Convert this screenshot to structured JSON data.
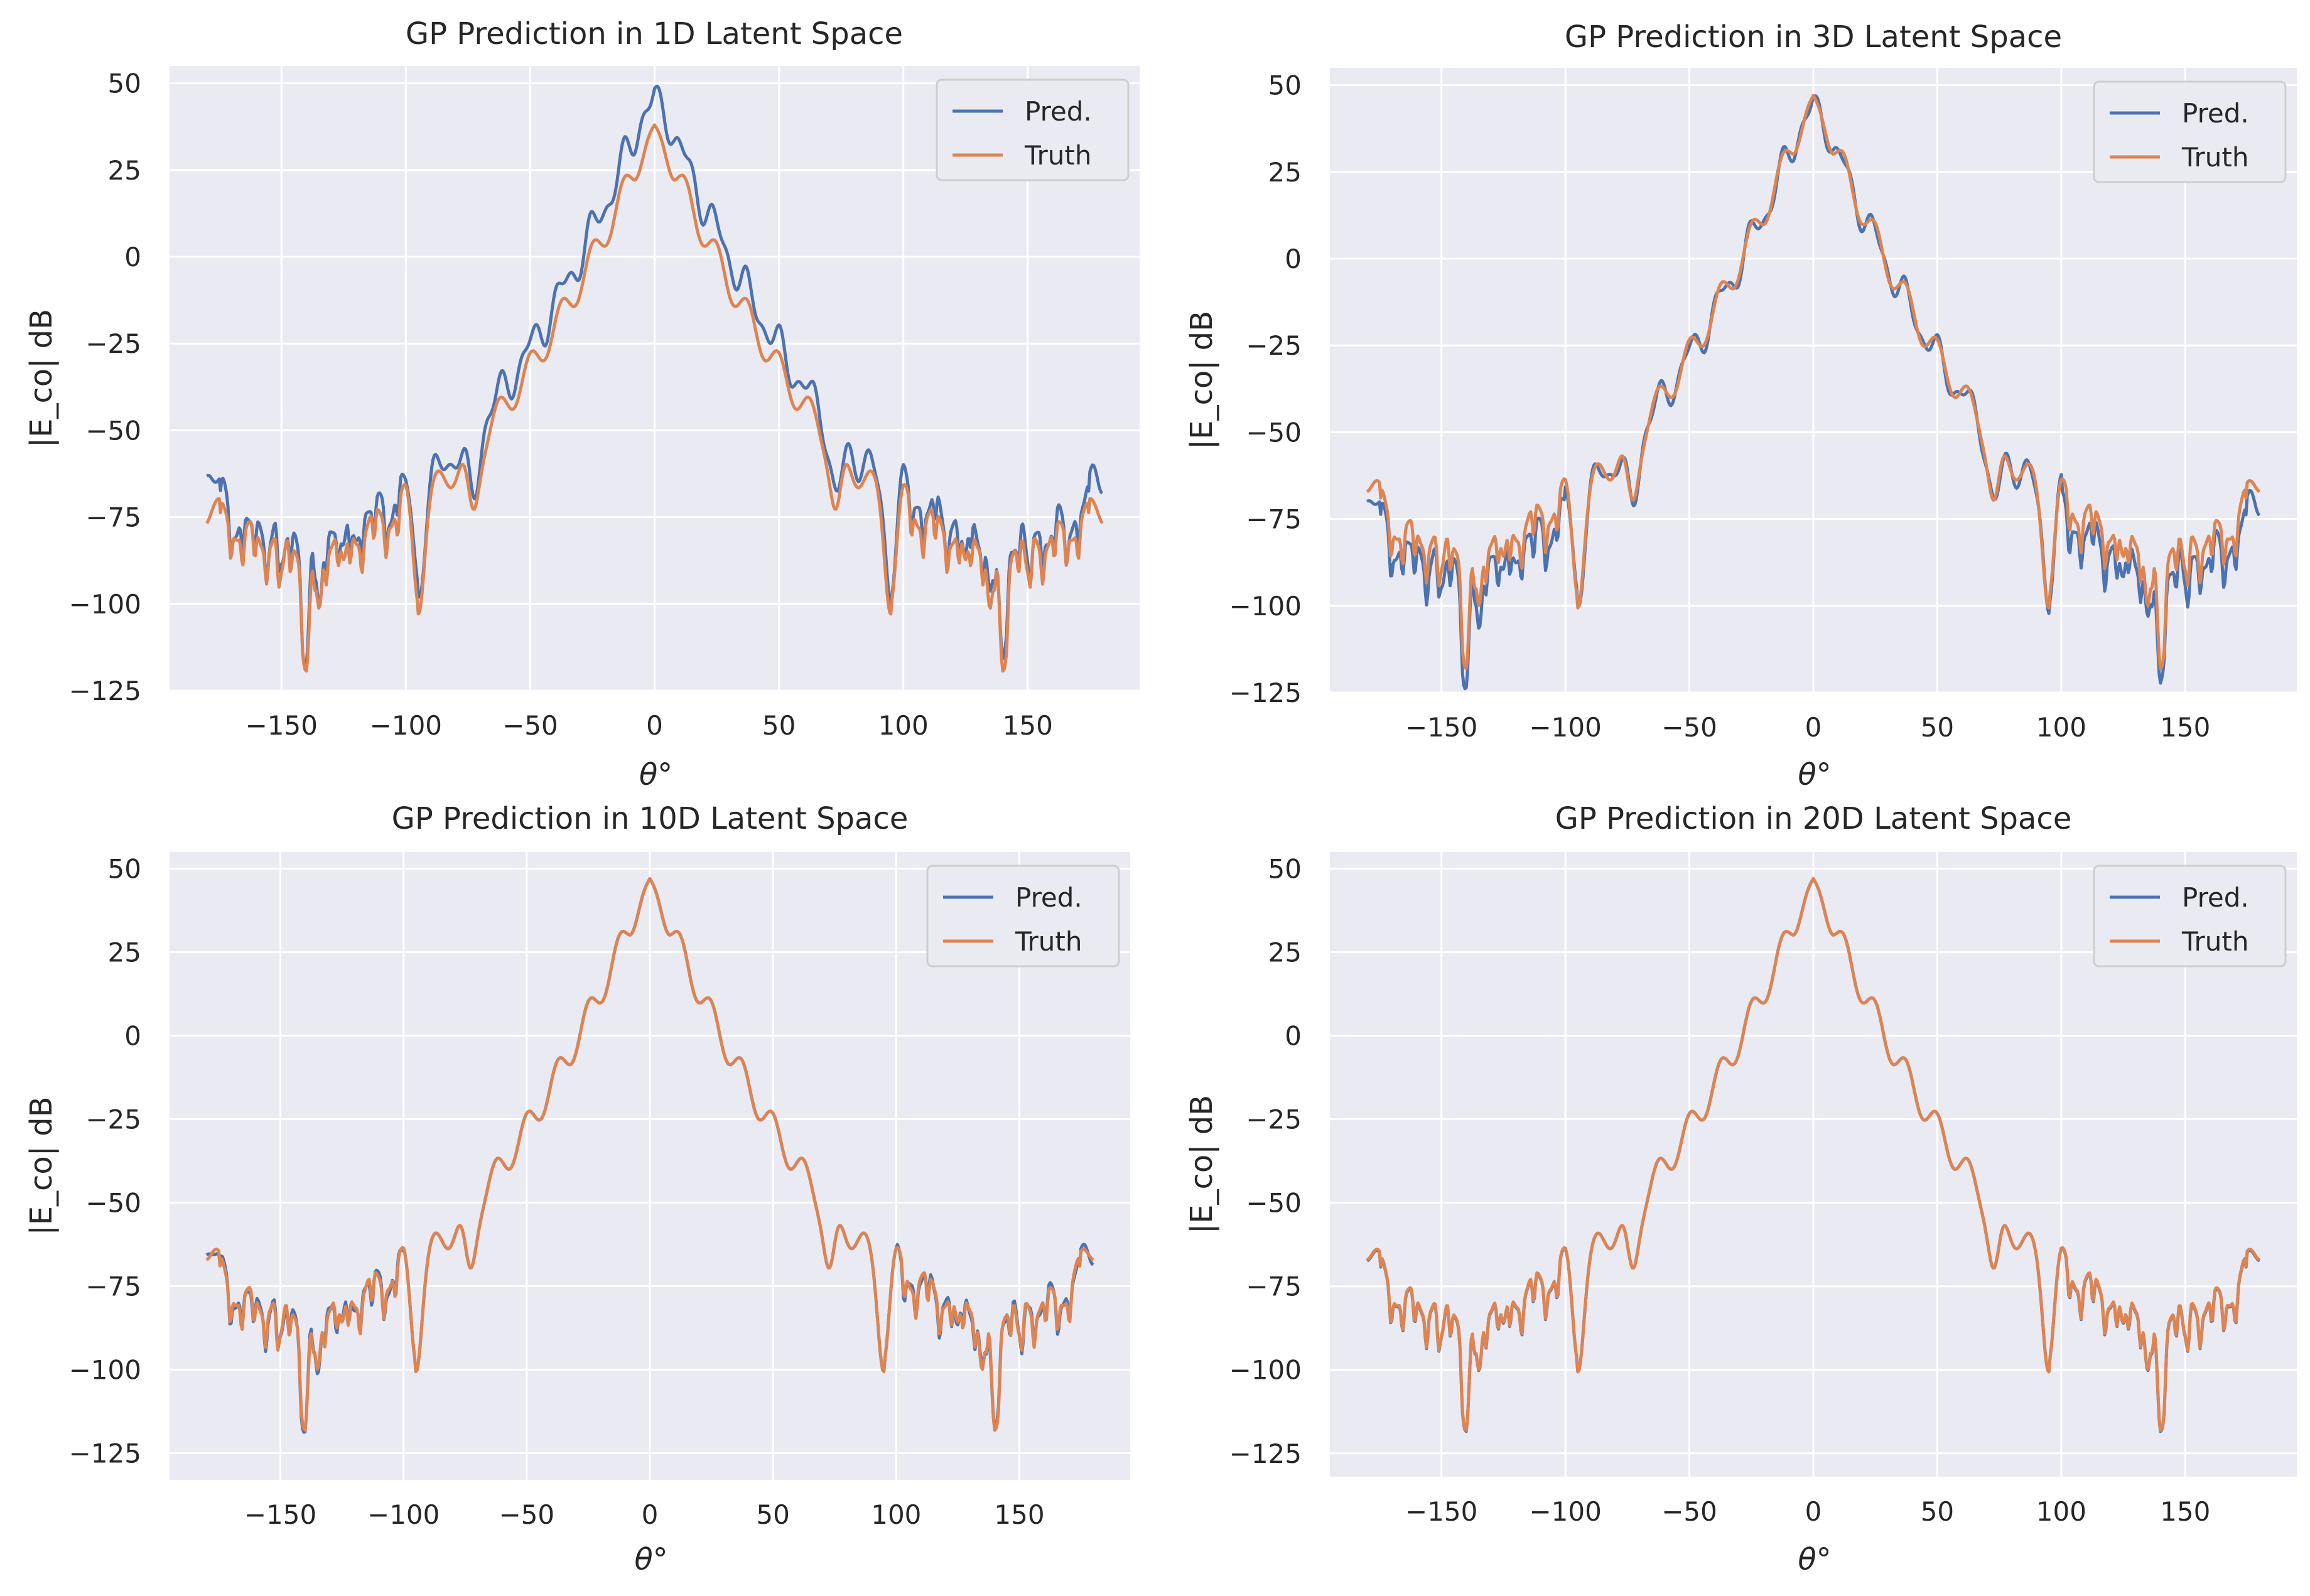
{
  "figure": {
    "colors": {
      "background": "#eaeaf2",
      "grid": "#ffffff",
      "pred": "#4c72b0",
      "truth": "#dd8452",
      "text": "#262626"
    }
  },
  "chart_data": [
    {
      "type": "line",
      "title": "GP Prediction in 1D Latent Space",
      "xlabel": "θ°",
      "ylabel": "|E_co| dB",
      "xlim": [
        -195,
        195
      ],
      "ylim": [
        -125,
        55
      ],
      "xticks": [
        -150,
        -100,
        -50,
        0,
        50,
        100,
        150
      ],
      "yticks": [
        -125,
        -100,
        -75,
        -50,
        -25,
        0,
        25,
        50
      ],
      "grid": true,
      "legend": "top-right",
      "variant": "1d",
      "series": [
        {
          "name": "Pred.",
          "color": "#4c72b0",
          "key": "pred"
        },
        {
          "name": "Truth",
          "color": "#dd8452",
          "key": "truth"
        }
      ]
    },
    {
      "type": "line",
      "title": "GP Prediction in 3D Latent Space",
      "xlabel": "θ°",
      "ylabel": "|E_co| dB",
      "xlim": [
        -195,
        195
      ],
      "ylim": [
        -125,
        55
      ],
      "xticks": [
        -150,
        -100,
        -50,
        0,
        50,
        100,
        150
      ],
      "yticks": [
        -125,
        -100,
        -75,
        -50,
        -25,
        0,
        25,
        50
      ],
      "grid": true,
      "legend": "top-right",
      "variant": "3d",
      "series": [
        {
          "name": "Pred.",
          "color": "#4c72b0",
          "key": "pred"
        },
        {
          "name": "Truth",
          "color": "#dd8452",
          "key": "truth"
        }
      ]
    },
    {
      "type": "line",
      "title": "GP Prediction in 10D Latent Space",
      "xlabel": "θ°",
      "ylabel": "|E_co| dB",
      "xlim": [
        -195,
        195
      ],
      "ylim": [
        -133,
        55
      ],
      "xticks": [
        -150,
        -100,
        -50,
        0,
        50,
        100,
        150
      ],
      "yticks": [
        -125,
        -100,
        -75,
        -50,
        -25,
        0,
        25,
        50
      ],
      "grid": true,
      "legend": "top-right",
      "variant": "10d",
      "series": [
        {
          "name": "Pred.",
          "color": "#4c72b0",
          "key": "pred"
        },
        {
          "name": "Truth",
          "color": "#dd8452",
          "key": "truth"
        }
      ]
    },
    {
      "type": "line",
      "title": "GP Prediction in 20D Latent Space",
      "xlabel": "θ°",
      "ylabel": "|E_co| dB",
      "xlim": [
        -195,
        195
      ],
      "ylim": [
        -132,
        55
      ],
      "xticks": [
        -150,
        -100,
        -50,
        0,
        50,
        100,
        150
      ],
      "yticks": [
        -125,
        -100,
        -75,
        -50,
        -25,
        0,
        25,
        50
      ],
      "grid": true,
      "legend": "top-right",
      "variant": "20d",
      "series": [
        {
          "name": "Pred.",
          "color": "#4c72b0",
          "key": "pred"
        },
        {
          "name": "Truth",
          "color": "#dd8452",
          "key": "truth"
        }
      ]
    }
  ]
}
